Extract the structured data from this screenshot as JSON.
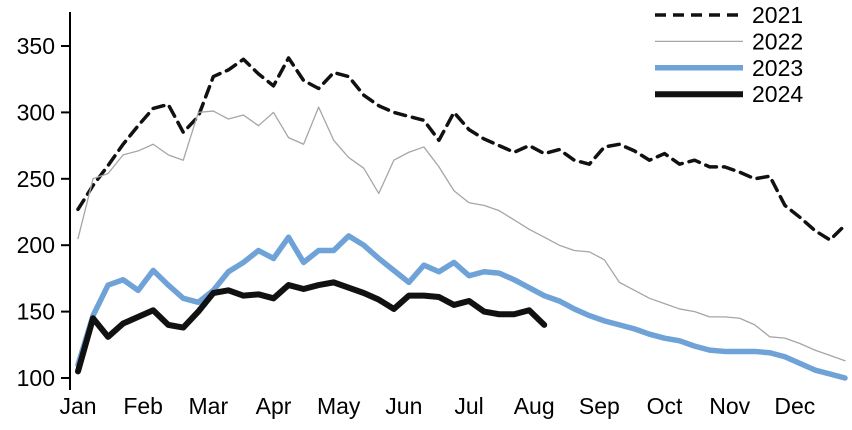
{
  "chart_data": {
    "type": "line",
    "title": "",
    "xlabel": "",
    "ylabel": "",
    "x_unit": "week",
    "categories": [
      "Jan",
      "Feb",
      "Mar",
      "Apr",
      "May",
      "Jun",
      "Jul",
      "Aug",
      "Sep",
      "Oct",
      "Nov",
      "Dec"
    ],
    "ylim": [
      100,
      350
    ],
    "yticks": [
      100,
      150,
      200,
      250,
      300,
      350
    ],
    "grid": false,
    "legend_position": "top-right",
    "series": [
      {
        "name": "2021",
        "color": "#111111",
        "style": "dashed",
        "dash": "11 7",
        "width": 3.5,
        "values": [
          227,
          245,
          260,
          276,
          290,
          303,
          306,
          285,
          297,
          327,
          332,
          340,
          329,
          320,
          341,
          324,
          318,
          330,
          327,
          313,
          305,
          300,
          297,
          294,
          279,
          300,
          287,
          280,
          275,
          270,
          275,
          269,
          272,
          264,
          261,
          274,
          276,
          271,
          264,
          269,
          261,
          264,
          259,
          259,
          255,
          250,
          252,
          230,
          221,
          211,
          204,
          215
        ]
      },
      {
        "name": "2022",
        "color": "#a6a6a6",
        "style": "solid",
        "dash": null,
        "width": 1.3,
        "values": [
          205,
          250,
          254,
          268,
          271,
          276,
          268,
          264,
          300,
          301,
          295,
          298,
          290,
          300,
          281,
          276,
          304,
          279,
          266,
          258,
          239,
          264,
          270,
          274,
          259,
          241,
          232,
          230,
          226,
          219,
          212,
          206,
          200,
          196,
          195,
          189,
          172,
          166,
          160,
          156,
          152,
          150,
          146,
          146,
          145,
          140,
          131,
          130,
          126,
          121,
          117,
          113
        ]
      },
      {
        "name": "2023",
        "color": "#6fa3d8",
        "style": "solid",
        "dash": null,
        "width": 5.5,
        "values": [
          110,
          147,
          170,
          174,
          166,
          181,
          170,
          160,
          157,
          166,
          180,
          187,
          196,
          190,
          206,
          187,
          196,
          196,
          207,
          200,
          190,
          181,
          172,
          185,
          180,
          187,
          177,
          180,
          179,
          174,
          168,
          162,
          158,
          152,
          147,
          143,
          140,
          137,
          133,
          130,
          128,
          124,
          121,
          120,
          120,
          120,
          119,
          116,
          111,
          106,
          103,
          100
        ]
      },
      {
        "name": "2024",
        "color": "#111111",
        "style": "solid",
        "dash": null,
        "width": 6,
        "values": [
          105,
          145,
          131,
          141,
          146,
          151,
          140,
          138,
          150,
          164,
          166,
          162,
          163,
          160,
          170,
          167,
          170,
          172,
          168,
          164,
          159,
          152,
          162,
          162,
          161,
          155,
          158,
          150,
          148,
          148,
          151,
          140
        ]
      }
    ]
  }
}
